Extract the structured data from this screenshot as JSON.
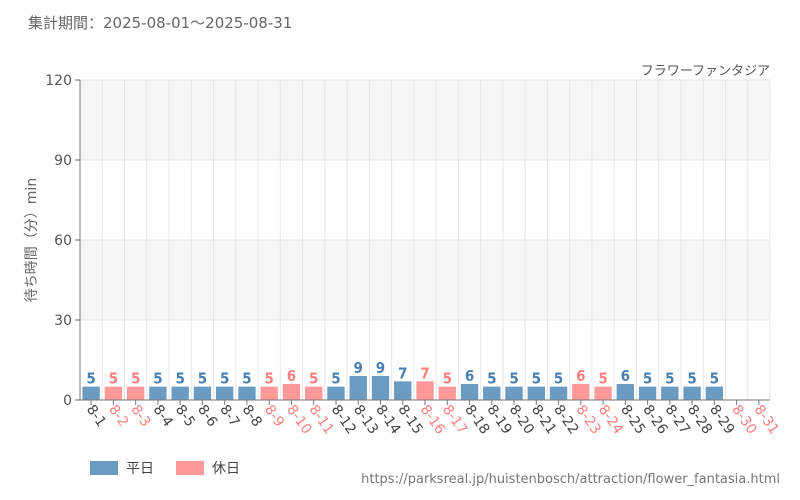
{
  "period_label": "集計期間：2025-08-01～2025-08-31",
  "source_url": "https://parksreal.jp/huistenbosch/attraction/flower_fantasia.html",
  "colors": {
    "weekday": "#6a9bc3",
    "holiday": "#ff9999",
    "weekday_label": "#4a7fb0",
    "holiday_label": "#ff7f7f",
    "grid": "#e6e6e6",
    "band": "#f6f6f6"
  },
  "chart_data": {
    "type": "bar",
    "title": "フラワーファンタジア",
    "ylabel": "待ち時間（分）min",
    "xlabel": "",
    "ylim": [
      0,
      120
    ],
    "yticks": [
      0,
      30,
      60,
      90,
      120
    ],
    "grid": true,
    "legend_position": "bottom-left",
    "legend": [
      {
        "key": "weekday",
        "label": "平日"
      },
      {
        "key": "holiday",
        "label": "休日"
      }
    ],
    "categories": [
      "8-1",
      "8-2",
      "8-3",
      "8-4",
      "8-5",
      "8-6",
      "8-7",
      "8-8",
      "8-9",
      "8-10",
      "8-11",
      "8-12",
      "8-13",
      "8-14",
      "8-15",
      "8-16",
      "8-17",
      "8-18",
      "8-19",
      "8-20",
      "8-21",
      "8-22",
      "8-23",
      "8-24",
      "8-25",
      "8-26",
      "8-27",
      "8-28",
      "8-29",
      "8-30",
      "8-31"
    ],
    "values": [
      5,
      5,
      5,
      5,
      5,
      5,
      5,
      5,
      5,
      6,
      5,
      5,
      9,
      9,
      7,
      7,
      5,
      6,
      5,
      5,
      5,
      5,
      6,
      5,
      6,
      5,
      5,
      5,
      5,
      null,
      null
    ],
    "day_type": [
      "weekday",
      "holiday",
      "holiday",
      "weekday",
      "weekday",
      "weekday",
      "weekday",
      "weekday",
      "holiday",
      "holiday",
      "holiday",
      "weekday",
      "weekday",
      "weekday",
      "weekday",
      "holiday",
      "holiday",
      "weekday",
      "weekday",
      "weekday",
      "weekday",
      "weekday",
      "holiday",
      "holiday",
      "weekday",
      "weekday",
      "weekday",
      "weekday",
      "weekday",
      "holiday",
      "holiday"
    ]
  }
}
